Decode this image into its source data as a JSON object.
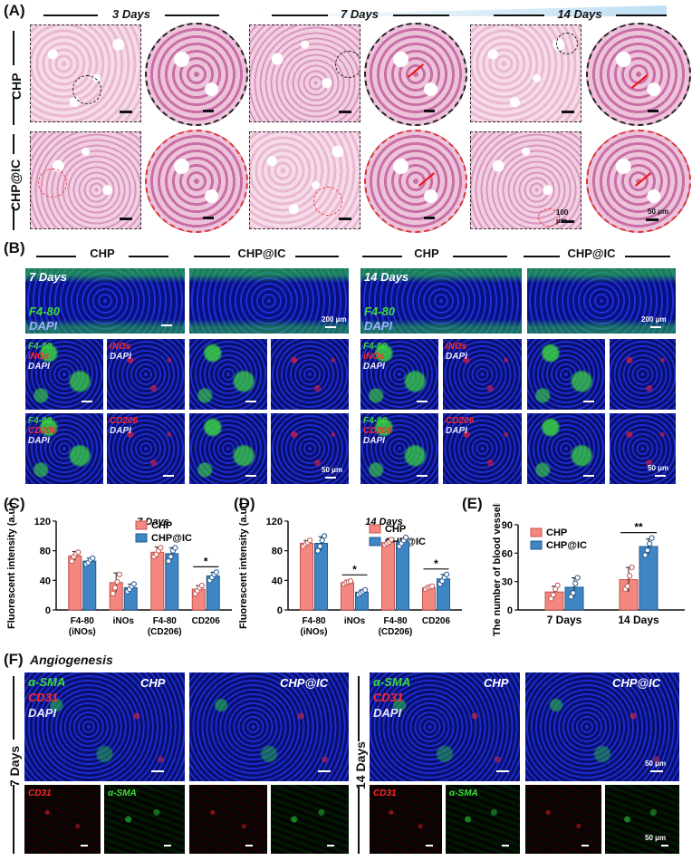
{
  "panelA": {
    "label": "(A)",
    "time_headers": [
      "3 Days",
      "7 Days",
      "14 Days"
    ],
    "rows": [
      "CHP",
      "CHP@IC"
    ],
    "scale_labels": [
      "100 μm",
      "50 μm"
    ]
  },
  "panelB": {
    "label": "(B)",
    "group_headers": [
      "CHP",
      "CHP@IC",
      "CHP",
      "CHP@IC"
    ],
    "days": [
      "7 Days",
      "14 Days"
    ],
    "stain_big": [
      "F4-80",
      "DAPI"
    ],
    "stain_inos": [
      "F4-80",
      "iNOs",
      "DAPI"
    ],
    "stain_inos_single": [
      "iNOs",
      "DAPI"
    ],
    "stain_cd206": [
      "F4-80",
      "CD206",
      "DAPI"
    ],
    "stain_cd206_single": [
      "CD206",
      "DAPI"
    ],
    "scale_labels": [
      "200 μm",
      "50 μm"
    ]
  },
  "panelC": {
    "label": "(C)",
    "chart_data": {
      "type": "bar",
      "title": "7 Days",
      "ylabel": "Fluorescent intensity (a.u.)",
      "ylim": [
        0,
        120
      ],
      "yticks": [
        0,
        40,
        80,
        120
      ],
      "categories": [
        "F4-80\n(iNOs)",
        "iNOs",
        "F4-80\n(CD206)",
        "CD206"
      ],
      "series": [
        {
          "name": "CHP",
          "values": [
            73,
            37,
            78,
            28
          ],
          "err": [
            6,
            13,
            7,
            5
          ],
          "points": [
            [
              66,
              72,
              76,
              78
            ],
            [
              22,
              30,
              38,
              48
            ],
            [
              72,
              75,
              80,
              84
            ],
            [
              22,
              26,
              30,
              33
            ]
          ]
        },
        {
          "name": "CHP@IC",
          "values": [
            66,
            30,
            76,
            46
          ],
          "err": [
            4,
            5,
            8,
            5
          ],
          "points": [
            [
              62,
              64,
              68,
              70
            ],
            [
              25,
              28,
              32,
              35
            ],
            [
              66,
              72,
              80,
              84
            ],
            [
              40,
              44,
              48,
              51
            ]
          ]
        }
      ],
      "significance": [
        {
          "category": 3,
          "mark": "*"
        }
      ]
    }
  },
  "panelD": {
    "label": "(D)",
    "chart_data": {
      "type": "bar",
      "title": "14 Days",
      "ylabel": "Fluorescent intensity (a.u.)",
      "ylim": [
        0,
        120
      ],
      "yticks": [
        0,
        40,
        80,
        120
      ],
      "categories": [
        "F4-80\n(iNOs)",
        "iNOs",
        "F4-80\n(CD206)",
        "CD206"
      ],
      "series": [
        {
          "name": "CHP",
          "values": [
            90,
            37,
            91,
            30
          ],
          "err": [
            4,
            3,
            4,
            3
          ],
          "points": [
            [
              86,
              89,
              91,
              94
            ],
            [
              35,
              37,
              38,
              39
            ],
            [
              88,
              90,
              92,
              95
            ],
            [
              28,
              30,
              31,
              32
            ]
          ]
        },
        {
          "name": "CHP@IC",
          "values": [
            90,
            24,
            92,
            42
          ],
          "err": [
            9,
            3,
            5,
            6
          ],
          "points": [
            [
              80,
              86,
              94,
              100
            ],
            [
              21,
              23,
              25,
              27
            ],
            [
              86,
              90,
              94,
              98
            ],
            [
              35,
              39,
              44,
              48
            ]
          ]
        }
      ],
      "significance": [
        {
          "category": 1,
          "mark": "*"
        },
        {
          "category": 3,
          "mark": "*"
        }
      ]
    }
  },
  "panelE": {
    "label": "(E)",
    "chart_data": {
      "type": "bar",
      "ylabel": "The number of blood vessels",
      "ylim": [
        0,
        90
      ],
      "yticks": [
        0,
        30,
        60,
        90
      ],
      "categories": [
        "7 Days",
        "14 Days"
      ],
      "series": [
        {
          "name": "CHP",
          "values": [
            19,
            32
          ],
          "err": [
            6,
            13
          ],
          "points": [
            [
              12,
              16,
              22,
              26
            ],
            [
              22,
              25,
              36,
              45
            ]
          ]
        },
        {
          "name": "CHP@IC",
          "values": [
            24,
            67
          ],
          "err": [
            10,
            8
          ],
          "points": [
            [
              14,
              18,
              28,
              34
            ],
            [
              58,
              63,
              70,
              76
            ]
          ]
        }
      ],
      "significance": [
        {
          "category": 1,
          "mark": "**"
        }
      ]
    }
  },
  "panelF": {
    "label": "(F)",
    "title": "Angiogenesis",
    "groups": [
      "CHP",
      "CHP@IC",
      "CHP",
      "CHP@IC"
    ],
    "days": [
      "7 Days",
      "14 Days"
    ],
    "stains": [
      "α-SMA",
      "CD31",
      "DAPI"
    ],
    "single_stains": [
      "CD31",
      "α-SMA"
    ],
    "scale_label": "50 μm"
  },
  "colors": {
    "chp": "#f4877f",
    "chpic": "#3f86c4",
    "chp_edge": "#c2554f",
    "chpic_edge": "#23598f"
  }
}
